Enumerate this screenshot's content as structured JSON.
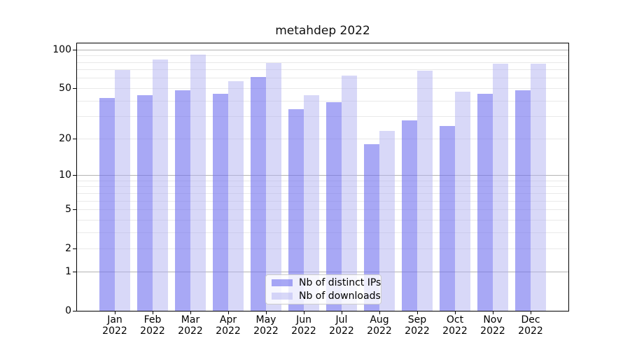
{
  "chart_data": {
    "type": "bar",
    "title": "metahdep 2022",
    "yscale": "log10(1+x)",
    "ylim_top_value": 111.4,
    "categories": [
      {
        "month": "Jan",
        "year": "2022"
      },
      {
        "month": "Feb",
        "year": "2022"
      },
      {
        "month": "Mar",
        "year": "2022"
      },
      {
        "month": "Apr",
        "year": "2022"
      },
      {
        "month": "May",
        "year": "2022"
      },
      {
        "month": "Jun",
        "year": "2022"
      },
      {
        "month": "Jul",
        "year": "2022"
      },
      {
        "month": "Aug",
        "year": "2022"
      },
      {
        "month": "Sep",
        "year": "2022"
      },
      {
        "month": "Oct",
        "year": "2022"
      },
      {
        "month": "Nov",
        "year": "2022"
      },
      {
        "month": "Dec",
        "year": "2022"
      }
    ],
    "series": [
      {
        "name": "Nb of distinct IPs",
        "color": "rgba(110,110,238,0.6)",
        "values": [
          42,
          44,
          48,
          45,
          61,
          34,
          39,
          18,
          28,
          25,
          45,
          48
        ]
      },
      {
        "name": "Nb of downloads",
        "color": "rgba(177,177,241,0.5)",
        "values": [
          69,
          84,
          91,
          57,
          79,
          44,
          63,
          23,
          68,
          47,
          78,
          78
        ]
      }
    ],
    "ytick_labels": [
      "0",
      "1",
      "2",
      "5",
      "10",
      "20",
      "50",
      "100"
    ],
    "ytick_values": [
      0,
      1,
      2,
      5,
      10,
      20,
      50,
      100
    ],
    "grid_major_values": [
      1,
      10,
      100
    ],
    "grid_minor_values": [
      2,
      3,
      4,
      5,
      6,
      7,
      8,
      9,
      20,
      30,
      40,
      50,
      60,
      70,
      80,
      90
    ],
    "legend_position": "lower center",
    "colors": {
      "grid_minor": "#e9e9e9",
      "grid_major": "#b3b3b3",
      "axis": "#000000",
      "title_text": "#111111",
      "tick_text": "#000000",
      "legend_border": "#cccccc"
    }
  }
}
